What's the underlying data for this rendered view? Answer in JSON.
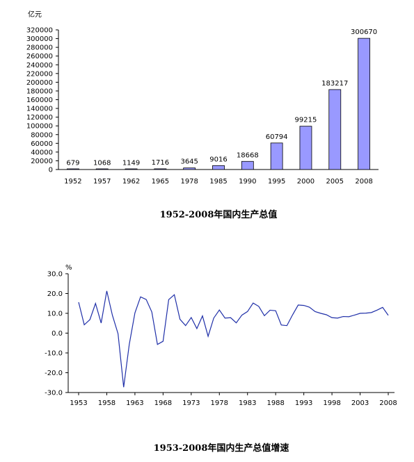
{
  "chart_data": [
    {
      "type": "bar",
      "title": "1952-2008年国内生产总值",
      "ylabel": "亿元",
      "xlabel": "",
      "categories": [
        "1952",
        "1957",
        "1962",
        "1965",
        "1978",
        "1985",
        "1990",
        "1995",
        "2000",
        "2005",
        "2008"
      ],
      "values": [
        679,
        1068,
        1149,
        1716,
        3645,
        9016,
        18668,
        60794,
        99215,
        183217,
        300670
      ],
      "data_labels": [
        "679",
        "1068",
        "1149",
        "1716",
        "3645",
        "9016",
        "18668",
        "60794",
        "99215",
        "183217",
        "300670"
      ],
      "ylim": [
        0,
        320000
      ],
      "yticks": [
        "0",
        "20000",
        "40000",
        "60000",
        "80000",
        "100000",
        "120000",
        "140000",
        "160000",
        "180000",
        "200000",
        "220000",
        "240000",
        "260000",
        "280000",
        "300000",
        "320000"
      ],
      "grid": false,
      "color": "#9999ff"
    },
    {
      "type": "line",
      "title": "1953-2008年国内生产总值增速",
      "ylabel": "%",
      "xlabel": "",
      "x": [
        1953,
        1954,
        1955,
        1956,
        1957,
        1958,
        1959,
        1960,
        1961,
        1962,
        1963,
        1964,
        1965,
        1966,
        1967,
        1968,
        1969,
        1970,
        1971,
        1972,
        1973,
        1974,
        1975,
        1976,
        1977,
        1978,
        1979,
        1980,
        1981,
        1982,
        1983,
        1984,
        1985,
        1986,
        1987,
        1988,
        1989,
        1990,
        1991,
        1992,
        1993,
        1994,
        1995,
        1996,
        1997,
        1998,
        1999,
        2000,
        2001,
        2002,
        2003,
        2004,
        2005,
        2006,
        2007,
        2008
      ],
      "values": [
        15.6,
        4.2,
        6.8,
        15.0,
        5.1,
        21.3,
        9.0,
        -0.3,
        -27.3,
        -5.6,
        10.2,
        18.3,
        17.0,
        10.7,
        -5.7,
        -4.1,
        16.9,
        19.4,
        7.0,
        3.8,
        7.9,
        2.3,
        8.7,
        -1.6,
        7.6,
        11.7,
        7.6,
        7.8,
        5.2,
        9.1,
        10.9,
        15.2,
        13.5,
        8.8,
        11.6,
        11.3,
        4.1,
        3.8,
        9.2,
        14.2,
        14.0,
        13.1,
        10.9,
        10.0,
        9.3,
        7.8,
        7.6,
        8.4,
        8.3,
        9.1,
        10.0,
        10.1,
        10.4,
        11.6,
        13.0,
        9.0
      ],
      "xticks": [
        1953,
        1958,
        1963,
        1968,
        1973,
        1978,
        1983,
        1988,
        1993,
        1998,
        2003,
        2008
      ],
      "ylim": [
        -30,
        30
      ],
      "yticks": [
        "30.0",
        "20.0",
        "10.0",
        "0.0",
        "-10.0",
        "-20.0",
        "-30.0"
      ],
      "grid": false,
      "color": "#1f2fa8"
    }
  ]
}
